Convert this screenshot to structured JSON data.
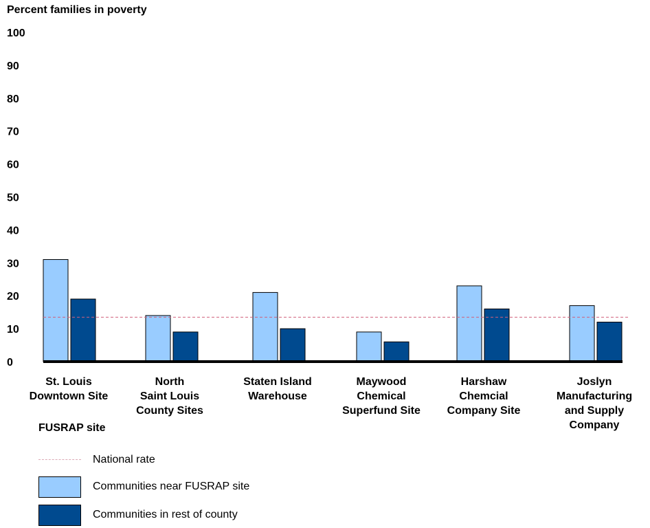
{
  "chart_data": {
    "type": "bar",
    "ylabel": "Percent families in poverty",
    "xlabel": "FUSRAP site",
    "ylim": [
      0,
      100
    ],
    "yticks": [
      0,
      10,
      20,
      30,
      40,
      50,
      60,
      70,
      80,
      90,
      100
    ],
    "categories": [
      "St. Louis\nDowntown Site",
      "North\nSaint Louis\nCounty Sites",
      "Staten Island\nWarehouse",
      "Maywood\nChemical\nSuperfund Site",
      "Harshaw\nChemcial\nCompany Site",
      "Joslyn\nManufacturing\nand Supply\nCompany"
    ],
    "series": [
      {
        "name": "Communities near FUSRAP site",
        "color": "#99ccff",
        "values": [
          31,
          14,
          21,
          9,
          23,
          17
        ]
      },
      {
        "name": "Communities in rest of county",
        "color": "#004a8f",
        "values": [
          19,
          9,
          10,
          6,
          16,
          12
        ]
      }
    ],
    "reference_line": {
      "name": "National rate",
      "value": 13.5,
      "color": "#d0607c"
    },
    "grid": false,
    "legend_position": "bottom-left"
  }
}
